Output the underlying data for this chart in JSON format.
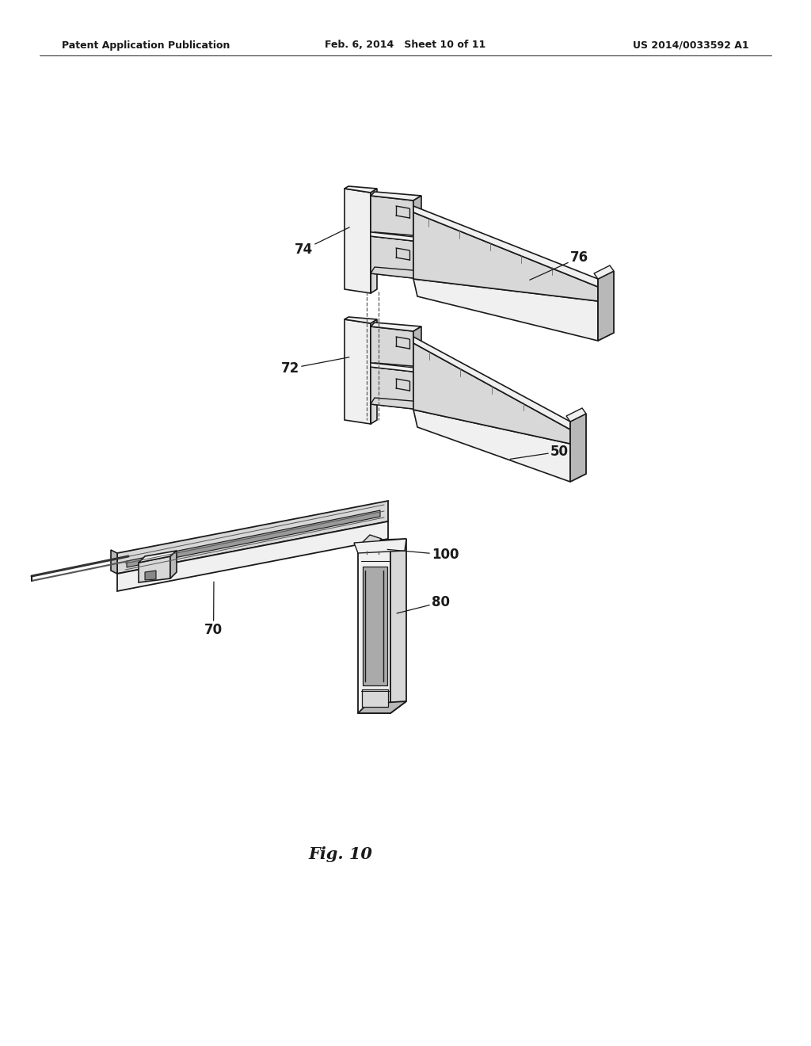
{
  "bg_color": "#ffffff",
  "line_color": "#1a1a1a",
  "header_left": "Patent Application Publication",
  "header_center": "Feb. 6, 2014   Sheet 10 of 11",
  "header_right": "US 2014/0033592 A1",
  "fig_label": "Fig. 10",
  "label_fontsize": 12,
  "header_fontsize": 9,
  "fig_fontsize": 15,
  "gray_light": "#f0f0f0",
  "gray_mid": "#d8d8d8",
  "gray_dark": "#b8b8b8",
  "gray_vdark": "#888888"
}
